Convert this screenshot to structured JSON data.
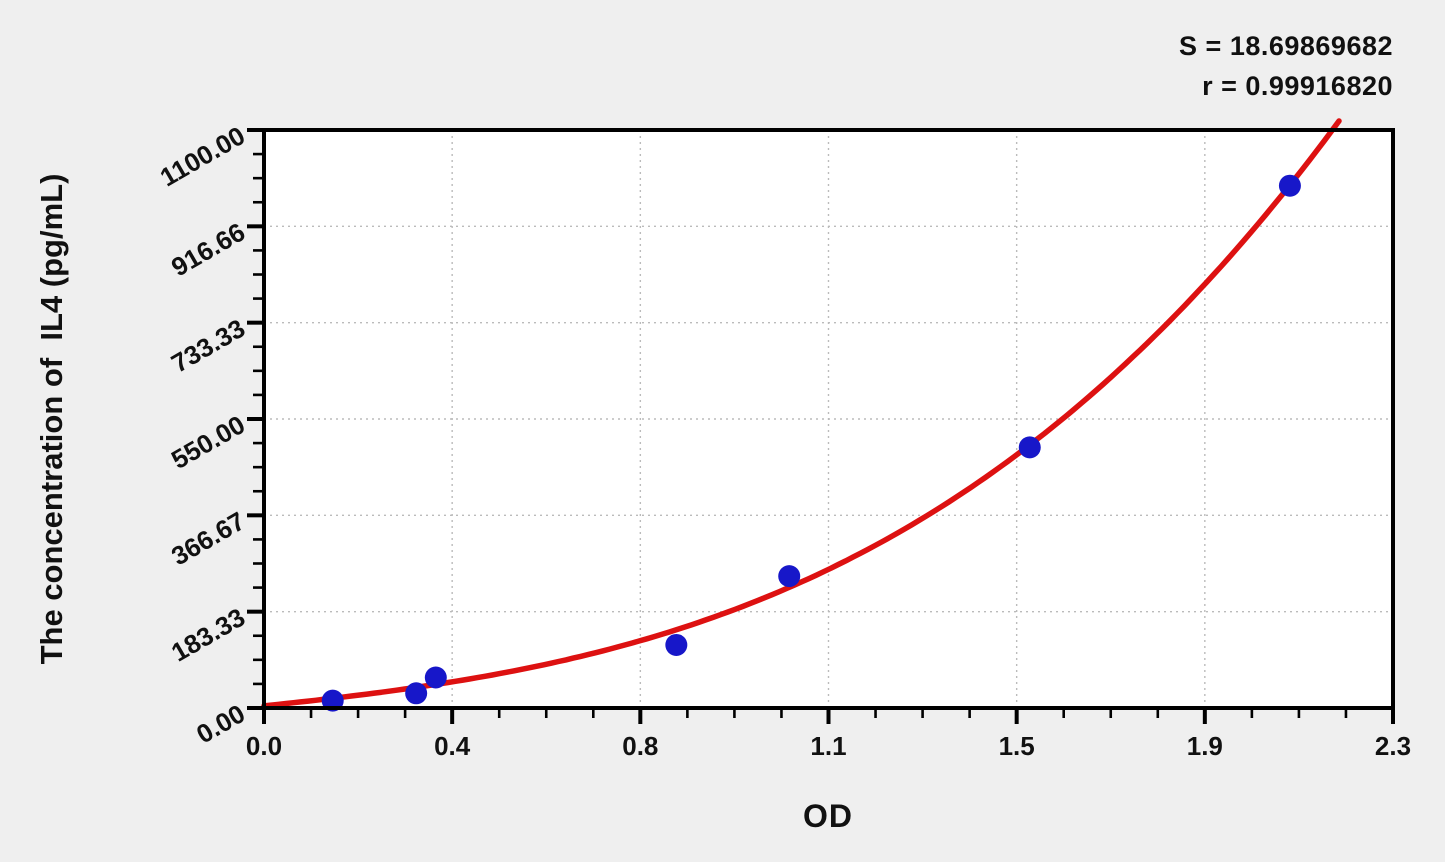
{
  "chart_data": {
    "type": "scatter",
    "title": "",
    "xlabel": "OD",
    "ylabel": "The concentration of  IL4 (pg/mL)",
    "xlim": [
      0,
      2.3
    ],
    "ylim": [
      0,
      1100
    ],
    "x_tick_labels": [
      "0.0",
      "0.4",
      "0.8",
      "1.1",
      "1.5",
      "1.9",
      "2.3"
    ],
    "y_tick_labels": [
      "0.00",
      "183.33",
      "366.67",
      "550.00",
      "733.33",
      "916.66",
      "1100.00"
    ],
    "minor_ticks_per_major_interval": 3,
    "grid": {
      "style": "dashed",
      "at": "major-ticks",
      "color": "#bbbbbb"
    },
    "annotations": {
      "s_label": "S = 18.69869682",
      "r_label": "r = 0.99916820"
    },
    "series": [
      {
        "name": "standard-points",
        "type": "scatter",
        "color": "#1717c9",
        "x": [
          0.14,
          0.31,
          0.35,
          0.84,
          1.07,
          1.56,
          2.09
        ],
        "y": [
          14,
          28,
          58,
          120,
          251,
          496,
          994
        ]
      },
      {
        "name": "fit-curve",
        "type": "line",
        "color": "#dd1111",
        "model": "cubic",
        "coefficients": [
          4,
          98.25,
          26.9,
          73.2
        ],
        "x_range": [
          0,
          2.19
        ]
      }
    ],
    "colors": {
      "page_background": "#efefef",
      "plot_background": "#ffffff",
      "axis": "#000000",
      "grid": "#bbbbbb",
      "curve": "#dd1111",
      "point": "#1717c9",
      "text": "#111111"
    }
  }
}
